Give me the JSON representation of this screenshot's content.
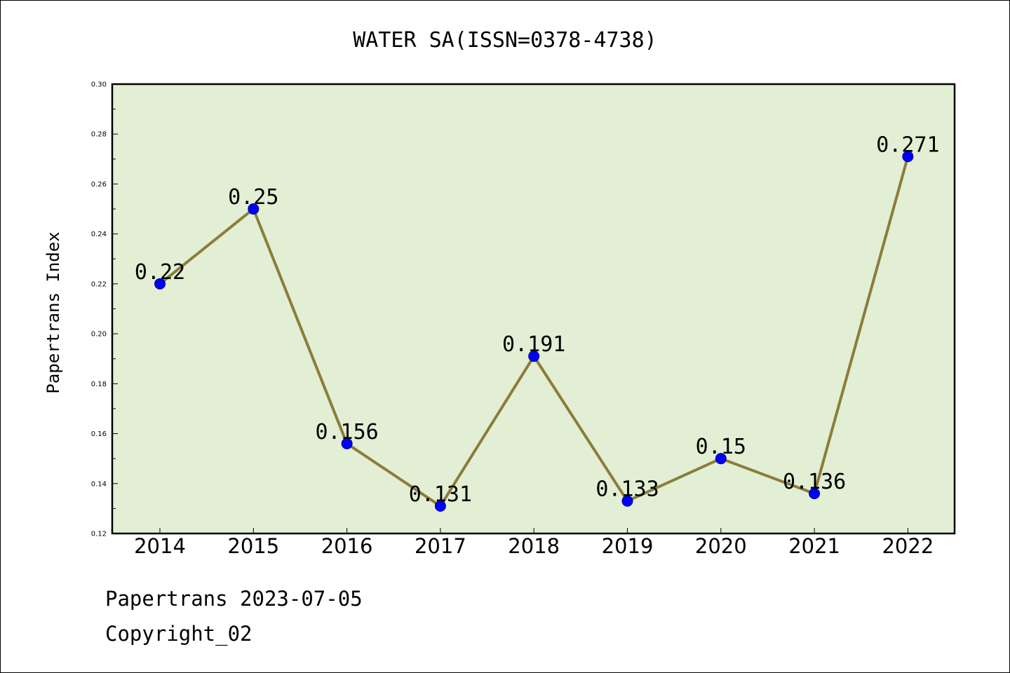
{
  "chart_data": {
    "type": "line",
    "title": "WATER SA(ISSN=0378-4738)",
    "xlabel": "",
    "ylabel": "Papertrans Index",
    "categories": [
      "2014",
      "2015",
      "2016",
      "2017",
      "2018",
      "2019",
      "2020",
      "2021",
      "2022"
    ],
    "series": [
      {
        "values": [
          0.22,
          0.25,
          0.156,
          0.131,
          0.191,
          0.133,
          0.15,
          0.136,
          0.271
        ],
        "data_labels": [
          "0.22",
          "0.25",
          "0.156",
          "0.131",
          "0.191",
          "0.133",
          "0.15",
          "0.136",
          "0.271"
        ]
      }
    ],
    "ylim": [
      0.12,
      0.3
    ],
    "yticks": [
      "0.12",
      "0.14",
      "0.16",
      "0.18",
      "0.20",
      "0.22",
      "0.24",
      "0.26",
      "0.28",
      "0.30"
    ],
    "grid": false,
    "legend": "none",
    "colors": {
      "plot_background": "#e2efd5",
      "line": "#8b7d3a",
      "marker": "#0000ff",
      "marker_edge": "#00008b"
    }
  },
  "footer": {
    "line1": "Papertrans 2023-07-05",
    "line2": "Copyright_02"
  }
}
